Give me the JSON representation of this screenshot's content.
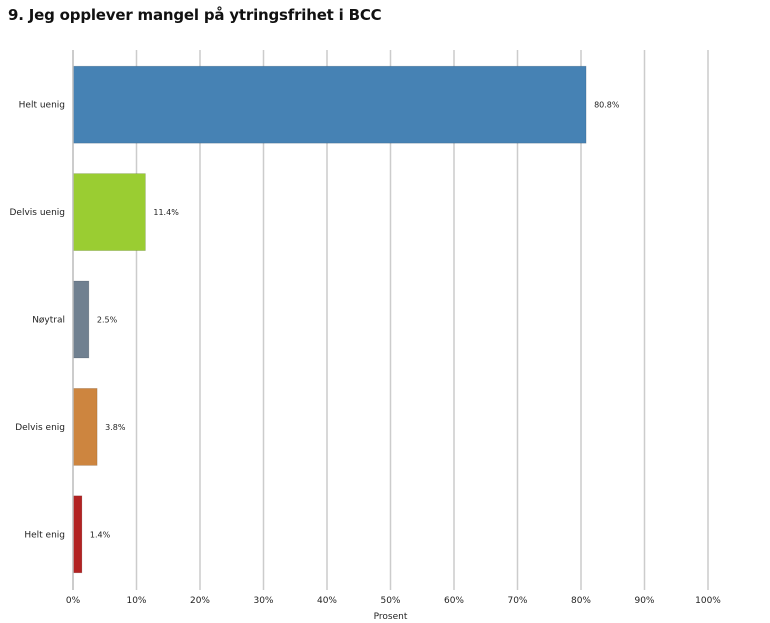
{
  "chart_data": {
    "type": "bar",
    "orientation": "horizontal",
    "title": "9. Jeg opplever mangel på ytringsfrihet i BCC",
    "xlabel": "Prosent",
    "ylabel": "",
    "xlim": [
      0,
      100
    ],
    "x_ticks": [
      "0%",
      "10%",
      "20%",
      "30%",
      "40%",
      "50%",
      "60%",
      "70%",
      "80%",
      "90%",
      "100%"
    ],
    "grid": "vertical",
    "legend": "none",
    "categories": [
      "Helt uenig",
      "Delvis uenig",
      "Nøytral",
      "Delvis enig",
      "Helt enig"
    ],
    "values": [
      80.8,
      11.4,
      2.5,
      3.8,
      1.4
    ],
    "value_labels": [
      "80.8%",
      "11.4%",
      "2.5%",
      "3.8%",
      "1.4%"
    ],
    "colors": [
      "#4682b4",
      "#9acd32",
      "#708090",
      "#cd853f",
      "#b22222"
    ]
  }
}
